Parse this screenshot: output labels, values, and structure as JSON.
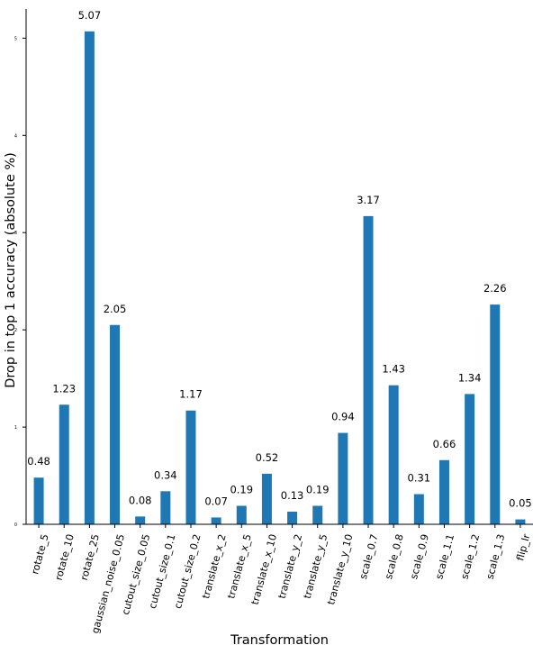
{
  "chart_data": {
    "type": "bar",
    "xlabel": "Transformation",
    "ylabel": "Drop in top 1 accuracy (absolute %)",
    "ylim": [
      0,
      5.3
    ],
    "yticks": [
      0,
      1,
      2,
      3,
      4,
      5
    ],
    "ytick_labels": [
      "0",
      "1",
      "2",
      "3",
      "4",
      "5"
    ],
    "grid": false,
    "bar_color": "#1f77b4",
    "categories": [
      "rotate_5",
      "rotate_10",
      "rotate_25",
      "gaussian_noise_0.05",
      "cutout_size_0.05",
      "cutout_size_0.1",
      "cutout_size_0.2",
      "translate_x_2",
      "translate_x_5",
      "translate_x_10",
      "translate_y_2",
      "translate_y_5",
      "translate_y_10",
      "scale_0.7",
      "scale_0.8",
      "scale_0.9",
      "scale_1.1",
      "scale_1.2",
      "scale_1.3",
      "flip_lr"
    ],
    "values": [
      0.48,
      1.23,
      5.07,
      2.05,
      0.08,
      0.34,
      1.17,
      0.07,
      0.19,
      0.52,
      0.13,
      0.19,
      0.94,
      3.17,
      1.43,
      0.31,
      0.66,
      1.34,
      2.26,
      0.05
    ],
    "value_labels": [
      "0.48",
      "1.23",
      "5.07",
      "2.05",
      "0.08",
      "0.34",
      "1.17",
      "0.07",
      "0.19",
      "0.52",
      "0.13",
      "0.19",
      "0.94",
      "3.17",
      "1.43",
      "0.31",
      "0.66",
      "1.34",
      "2.26",
      "0.05"
    ]
  }
}
